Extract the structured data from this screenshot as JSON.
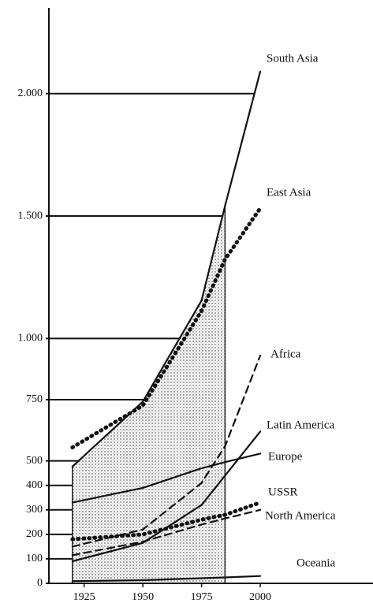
{
  "chart_data": {
    "type": "line",
    "x": [
      1920,
      1950,
      1975,
      1985,
      2000
    ],
    "xlim": [
      1910,
      2048
    ],
    "xticks": [
      1925,
      1950,
      1975,
      2000
    ],
    "ylim": [
      0,
      2350
    ],
    "yticks": [
      0,
      100,
      200,
      300,
      400,
      500,
      750,
      {
        "value": 1000,
        "label": "1.000"
      },
      {
        "value": 1500,
        "label": "1.500"
      },
      {
        "value": 2000,
        "label": "2.000"
      }
    ],
    "series": [
      {
        "name": "South Asia",
        "color": "#111",
        "style": "solid",
        "values": [
          477,
          742,
          1155,
          1542,
          2090
        ]
      },
      {
        "name": "East Asia",
        "color": "#111",
        "style": "dotted",
        "values": [
          555,
          726,
          1113,
          1323,
          1532
        ]
      },
      {
        "name": "Africa",
        "color": "#111",
        "style": "dashed",
        "values": [
          150,
          220,
          410,
          560,
          930
        ]
      },
      {
        "name": "Latin America",
        "color": "#111",
        "style": "solid",
        "values": [
          90,
          165,
          320,
          440,
          620
        ]
      },
      {
        "name": "Europe",
        "color": "#111",
        "style": "solid",
        "values": [
          330,
          390,
          470,
          495,
          530
        ]
      },
      {
        "name": "USSR",
        "color": "#111",
        "style": "dotted",
        "values": [
          180,
          200,
          260,
          280,
          330
        ]
      },
      {
        "name": "North America",
        "color": "#111",
        "style": "dashed",
        "values": [
          115,
          170,
          240,
          265,
          300
        ]
      },
      {
        "name": "Oceania",
        "color": "#111",
        "style": "solid",
        "values": [
          9,
          13,
          21,
          24,
          30
        ]
      }
    ]
  }
}
